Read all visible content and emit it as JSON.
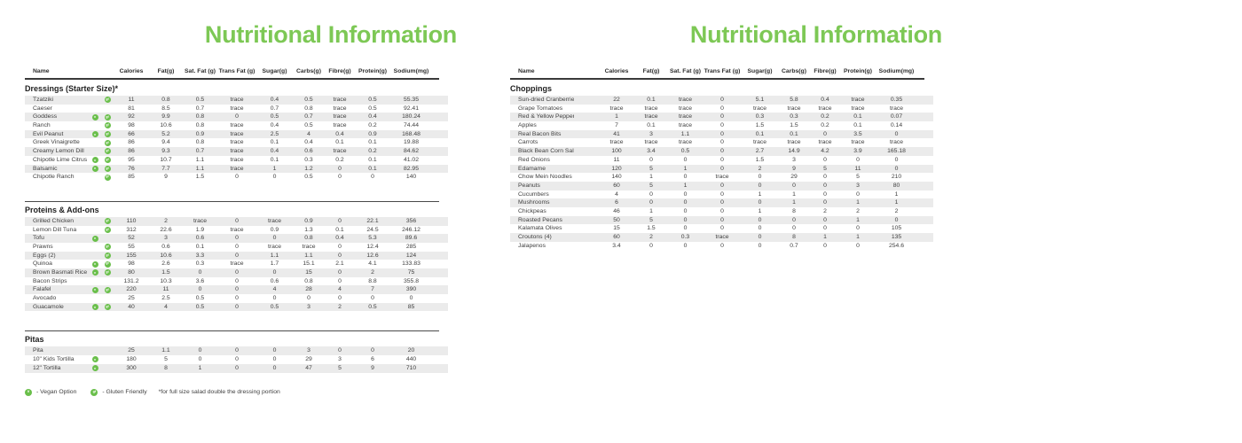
{
  "title": "Nutritional Information",
  "columns": [
    "Name",
    "Calories",
    "Fat(g)",
    "Sat. Fat (g)",
    "Trans Fat (g)",
    "Sugar(g)",
    "Carbs(g)",
    "Fibre(g)",
    "Protein(g)",
    "Sodium(mg)"
  ],
  "colors": {
    "accent_green": "#7dc855",
    "icon_green": "#6abf4b",
    "stripe": "#ebebeb",
    "text": "#3f3f3f"
  },
  "legend": {
    "vegan_symbol": "v",
    "vegan_label": "- Vegan Option",
    "gf_symbol": "gf",
    "gf_label": "- Gluten Friendly",
    "footnote": "*for full size salad double the dressing portion"
  },
  "left_panel": {
    "sections": [
      {
        "title": "Dressings (Starter Size)*",
        "divider": false,
        "rows": [
          {
            "name": "Tzatziki",
            "v": false,
            "gf": true,
            "values": [
              "11",
              "0.8",
              "0.5",
              "trace",
              "0.4",
              "0.5",
              "trace",
              "0.5",
              "55.35"
            ]
          },
          {
            "name": "Caeser",
            "v": false,
            "gf": false,
            "values": [
              "81",
              "8.5",
              "0.7",
              "trace",
              "0.7",
              "0.8",
              "trace",
              "0.5",
              "92.41"
            ]
          },
          {
            "name": "Goddess",
            "v": true,
            "gf": true,
            "values": [
              "92",
              "9.9",
              "0.8",
              "0",
              "0.5",
              "0.7",
              "trace",
              "0.4",
              "180.24"
            ]
          },
          {
            "name": "Ranch",
            "v": false,
            "gf": true,
            "values": [
              "98",
              "10.6",
              "0.8",
              "trace",
              "0.4",
              "0.5",
              "trace",
              "0.2",
              "74.44"
            ]
          },
          {
            "name": "Evil Peanut",
            "v": true,
            "gf": true,
            "values": [
              "66",
              "5.2",
              "0.9",
              "trace",
              "2.5",
              "4",
              "0.4",
              "0.9",
              "168.48"
            ]
          },
          {
            "name": "Greek Vinaigrette",
            "v": false,
            "gf": true,
            "values": [
              "86",
              "9.4",
              "0.8",
              "trace",
              "0.1",
              "0.4",
              "0.1",
              "0.1",
              "19.88"
            ]
          },
          {
            "name": "Creamy Lemon Dill",
            "v": false,
            "gf": true,
            "values": [
              "86",
              "9.3",
              "0.7",
              "trace",
              "0.4",
              "0.6",
              "trace",
              "0.2",
              "84.62"
            ]
          },
          {
            "name": "Chipotle Lime Citrus",
            "v": true,
            "gf": true,
            "values": [
              "95",
              "10.7",
              "1.1",
              "trace",
              "0.1",
              "0.3",
              "0.2",
              "0.1",
              "41.02"
            ]
          },
          {
            "name": "Balsamic",
            "v": true,
            "gf": true,
            "values": [
              "76",
              "7.7",
              "1.1",
              "trace",
              "1",
              "1.2",
              "0",
              "0.1",
              "82.95"
            ]
          },
          {
            "name": "Chipotle Ranch",
            "v": false,
            "gf": true,
            "values": [
              "85",
              "9",
              "1.5",
              "0",
              "0",
              "0.5",
              "0",
              "0",
              "140"
            ]
          }
        ]
      },
      {
        "title": "Proteins & Add-ons",
        "divider": true,
        "rows": [
          {
            "name": "Grilled Chicken",
            "v": false,
            "gf": true,
            "values": [
              "110",
              "2",
              "trace",
              "0",
              "trace",
              "0.9",
              "0",
              "22.1",
              "356"
            ]
          },
          {
            "name": "Lemon Dill Tuna",
            "v": false,
            "gf": true,
            "values": [
              "312",
              "22.6",
              "1.9",
              "trace",
              "0.9",
              "1.3",
              "0.1",
              "24.5",
              "246.12"
            ]
          },
          {
            "name": "Tofu",
            "v": true,
            "gf": false,
            "values": [
              "52",
              "3",
              "0.6",
              "0",
              "0",
              "0.8",
              "0.4",
              "5.3",
              "89.6"
            ]
          },
          {
            "name": "Prawns",
            "v": false,
            "gf": true,
            "values": [
              "55",
              "0.6",
              "0.1",
              "0",
              "trace",
              "trace",
              "0",
              "12.4",
              "285"
            ]
          },
          {
            "name": "Eggs (2)",
            "v": false,
            "gf": true,
            "values": [
              "155",
              "10.6",
              "3.3",
              "0",
              "1.1",
              "1.1",
              "0",
              "12.6",
              "124"
            ]
          },
          {
            "name": "Quinoa",
            "v": true,
            "gf": true,
            "values": [
              "98",
              "2.6",
              "0.3",
              "trace",
              "1.7",
              "15.1",
              "2.1",
              "4.1",
              "133.83"
            ]
          },
          {
            "name": "Brown Basmati Rice",
            "v": true,
            "gf": true,
            "values": [
              "80",
              "1.5",
              "0",
              "0",
              "0",
              "15",
              "0",
              "2",
              "75"
            ]
          },
          {
            "name": "Bacon Strips",
            "v": false,
            "gf": false,
            "values": [
              "131.2",
              "10.3",
              "3.6",
              "0",
              "0.6",
              "0.8",
              "0",
              "8.8",
              "355.8"
            ]
          },
          {
            "name": "Falafel",
            "v": true,
            "gf": true,
            "values": [
              "220",
              "11",
              "0",
              "0",
              "4",
              "28",
              "4",
              "7",
              "390"
            ]
          },
          {
            "name": "Avocado",
            "v": false,
            "gf": false,
            "values": [
              "25",
              "2.5",
              "0.5",
              "0",
              "0",
              "0",
              "0",
              "0",
              "0"
            ]
          },
          {
            "name": "Guacamole",
            "v": true,
            "gf": true,
            "values": [
              "40",
              "4",
              "0.5",
              "0",
              "0.5",
              "3",
              "2",
              "0.5",
              "85"
            ]
          }
        ]
      },
      {
        "title": "Pitas",
        "divider": true,
        "rows": [
          {
            "name": "Pita",
            "v": false,
            "gf": false,
            "values": [
              "25",
              "1.1",
              "0",
              "0",
              "0",
              "3",
              "0",
              "0",
              "20"
            ]
          },
          {
            "name": "10\" Kids Tortilla",
            "v": true,
            "gf": false,
            "values": [
              "180",
              "5",
              "0",
              "0",
              "0",
              "29",
              "3",
              "6",
              "440"
            ]
          },
          {
            "name": "12\" Tortilla",
            "v": true,
            "gf": false,
            "values": [
              "300",
              "8",
              "1",
              "0",
              "0",
              "47",
              "5",
              "9",
              "710"
            ]
          }
        ]
      }
    ]
  },
  "right_panel": {
    "sections": [
      {
        "title": "Choppings",
        "divider": false,
        "rows": [
          {
            "name": "Sun-dried Cranberries",
            "v": false,
            "gf": false,
            "values": [
              "22",
              "0.1",
              "trace",
              "0",
              "5.1",
              "5.8",
              "0.4",
              "trace",
              "0.35"
            ]
          },
          {
            "name": "Grape Tomatoes",
            "v": false,
            "gf": false,
            "values": [
              "trace",
              "trace",
              "trace",
              "0",
              "trace",
              "trace",
              "trace",
              "trace",
              "trace"
            ]
          },
          {
            "name": "Red & Yellow Peppers",
            "v": false,
            "gf": false,
            "values": [
              "1",
              "trace",
              "trace",
              "0",
              "0.3",
              "0.3",
              "0.2",
              "0.1",
              "0.07"
            ]
          },
          {
            "name": "Apples",
            "v": false,
            "gf": false,
            "values": [
              "7",
              "0.1",
              "trace",
              "0",
              "1.5",
              "1.5",
              "0.2",
              "0.1",
              "0.14"
            ]
          },
          {
            "name": "Real Bacon Bits",
            "v": false,
            "gf": false,
            "values": [
              "41",
              "3",
              "1.1",
              "0",
              "0.1",
              "0.1",
              "0",
              "3.5",
              "0"
            ]
          },
          {
            "name": "Carrots",
            "v": false,
            "gf": false,
            "values": [
              "trace",
              "trace",
              "trace",
              "0",
              "trace",
              "trace",
              "trace",
              "trace",
              "trace"
            ]
          },
          {
            "name": "Black Bean Corn Salsa",
            "v": false,
            "gf": false,
            "values": [
              "100",
              "3.4",
              "0.5",
              "0",
              "2.7",
              "14.9",
              "4.2",
              "3.9",
              "165.18"
            ]
          },
          {
            "name": "Red Onions",
            "v": false,
            "gf": false,
            "values": [
              "11",
              "0",
              "0",
              "0",
              "1.5",
              "3",
              "0",
              "0",
              "0"
            ]
          },
          {
            "name": "Edamame",
            "v": false,
            "gf": false,
            "values": [
              "120",
              "5",
              "1",
              "0",
              "2",
              "9",
              "5",
              "11",
              "0"
            ]
          },
          {
            "name": "Chow Mein Noodles",
            "v": false,
            "gf": false,
            "values": [
              "140",
              "1",
              "0",
              "trace",
              "0",
              "29",
              "0",
              "5",
              "210"
            ]
          },
          {
            "name": "Peanuts",
            "v": false,
            "gf": false,
            "values": [
              "60",
              "5",
              "1",
              "0",
              "0",
              "0",
              "0",
              "3",
              "80"
            ]
          },
          {
            "name": "Cucumbers",
            "v": false,
            "gf": false,
            "values": [
              "4",
              "0",
              "0",
              "0",
              "1",
              "1",
              "0",
              "0",
              "1"
            ]
          },
          {
            "name": "Mushrooms",
            "v": false,
            "gf": false,
            "values": [
              "6",
              "0",
              "0",
              "0",
              "0",
              "1",
              "0",
              "1",
              "1"
            ]
          },
          {
            "name": "Chickpeas",
            "v": false,
            "gf": false,
            "values": [
              "46",
              "1",
              "0",
              "0",
              "1",
              "8",
              "2",
              "2",
              "2"
            ]
          },
          {
            "name": "Roasted Pecans",
            "v": false,
            "gf": false,
            "values": [
              "50",
              "5",
              "0",
              "0",
              "0",
              "0",
              "0",
              "1",
              "0"
            ]
          },
          {
            "name": "Kalamata Olives",
            "v": false,
            "gf": false,
            "values": [
              "15",
              "1.5",
              "0",
              "0",
              "0",
              "0",
              "0",
              "0",
              "105"
            ]
          },
          {
            "name": "Croutons (4)",
            "v": false,
            "gf": false,
            "values": [
              "60",
              "2",
              "0.3",
              "trace",
              "0",
              "8",
              "1",
              "1",
              "135"
            ]
          },
          {
            "name": "Jalapenos",
            "v": false,
            "gf": false,
            "values": [
              "3.4",
              "0",
              "0",
              "0",
              "0",
              "0.7",
              "0",
              "0",
              "254.6"
            ]
          }
        ]
      }
    ]
  }
}
